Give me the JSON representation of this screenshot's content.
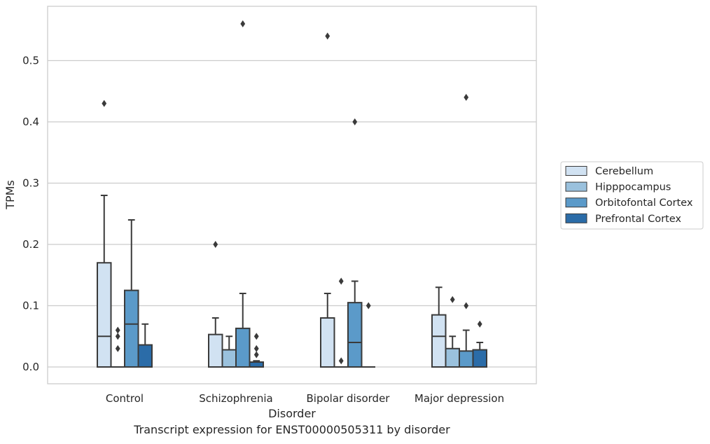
{
  "chart_data": {
    "type": "box",
    "caption": "Transcript expression for ENST00000505311 by disorder",
    "xlabel": "Disorder",
    "ylabel": "TPMs",
    "ylim": [
      -0.028,
      0.588
    ],
    "yticks": [
      "0.0",
      "0.1",
      "0.2",
      "0.3",
      "0.4",
      "0.5"
    ],
    "yticks_values": [
      0.0,
      0.1,
      0.2,
      0.3,
      0.4,
      0.5
    ],
    "grid": true,
    "legend_position": "right",
    "categories": [
      "Control",
      "Schizophrenia",
      "Bipolar disorder",
      "Major depression"
    ],
    "series": [
      {
        "name": "Cerebellum",
        "color": "#d1e2f2",
        "boxes": [
          {
            "q1": 0.0,
            "median": 0.05,
            "q3": 0.17,
            "whisker_low": 0.0,
            "whisker_high": 0.28,
            "outliers": [
              0.43
            ]
          },
          {
            "q1": 0.0,
            "median": 0.0,
            "q3": 0.053,
            "whisker_low": 0.0,
            "whisker_high": 0.08,
            "outliers": [
              0.2
            ]
          },
          {
            "q1": 0.0,
            "median": 0.0,
            "q3": 0.08,
            "whisker_low": 0.0,
            "whisker_high": 0.12,
            "outliers": [
              0.54
            ]
          },
          {
            "q1": 0.0,
            "median": 0.05,
            "q3": 0.085,
            "whisker_low": 0.0,
            "whisker_high": 0.13,
            "outliers": []
          }
        ]
      },
      {
        "name": "Hipppocampus",
        "color": "#9ac1dd",
        "boxes": [
          {
            "q1": 0.0,
            "median": 0.0,
            "q3": 0.0,
            "whisker_low": 0.0,
            "whisker_high": 0.0,
            "outliers": [
              0.03,
              0.05,
              0.06
            ]
          },
          {
            "q1": 0.0,
            "median": 0.0,
            "q3": 0.028,
            "whisker_low": 0.0,
            "whisker_high": 0.05,
            "outliers": []
          },
          {
            "q1": 0.0,
            "median": 0.0,
            "q3": 0.0,
            "whisker_low": 0.0,
            "whisker_high": 0.0,
            "outliers": [
              0.01,
              0.14
            ]
          },
          {
            "q1": 0.0,
            "median": 0.0,
            "q3": 0.03,
            "whisker_low": 0.0,
            "whisker_high": 0.05,
            "outliers": [
              0.11
            ]
          }
        ]
      },
      {
        "name": "Orbitofontal Cortex",
        "color": "#5b9ac9",
        "boxes": [
          {
            "q1": 0.0,
            "median": 0.07,
            "q3": 0.125,
            "whisker_low": 0.0,
            "whisker_high": 0.24,
            "outliers": []
          },
          {
            "q1": 0.0,
            "median": 0.0,
            "q3": 0.063,
            "whisker_low": 0.0,
            "whisker_high": 0.12,
            "outliers": [
              0.56
            ]
          },
          {
            "q1": 0.0,
            "median": 0.04,
            "q3": 0.105,
            "whisker_low": 0.0,
            "whisker_high": 0.14,
            "outliers": [
              0.4
            ]
          },
          {
            "q1": 0.0,
            "median": 0.0,
            "q3": 0.026,
            "whisker_low": 0.0,
            "whisker_high": 0.06,
            "outliers": [
              0.1,
              0.44
            ]
          }
        ]
      },
      {
        "name": "Prefrontal Cortex",
        "color": "#2b6ca8",
        "boxes": [
          {
            "q1": 0.0,
            "median": 0.0,
            "q3": 0.036,
            "whisker_low": 0.0,
            "whisker_high": 0.07,
            "outliers": []
          },
          {
            "q1": 0.0,
            "median": 0.0,
            "q3": 0.008,
            "whisker_low": 0.0,
            "whisker_high": 0.01,
            "outliers": [
              0.02,
              0.03,
              0.05
            ]
          },
          {
            "q1": 0.0,
            "median": 0.0,
            "q3": 0.0,
            "whisker_low": 0.0,
            "whisker_high": 0.0,
            "outliers": [
              0.1
            ]
          },
          {
            "q1": 0.0,
            "median": 0.0,
            "q3": 0.028,
            "whisker_low": 0.0,
            "whisker_high": 0.04,
            "outliers": [
              0.07
            ]
          }
        ]
      }
    ]
  }
}
